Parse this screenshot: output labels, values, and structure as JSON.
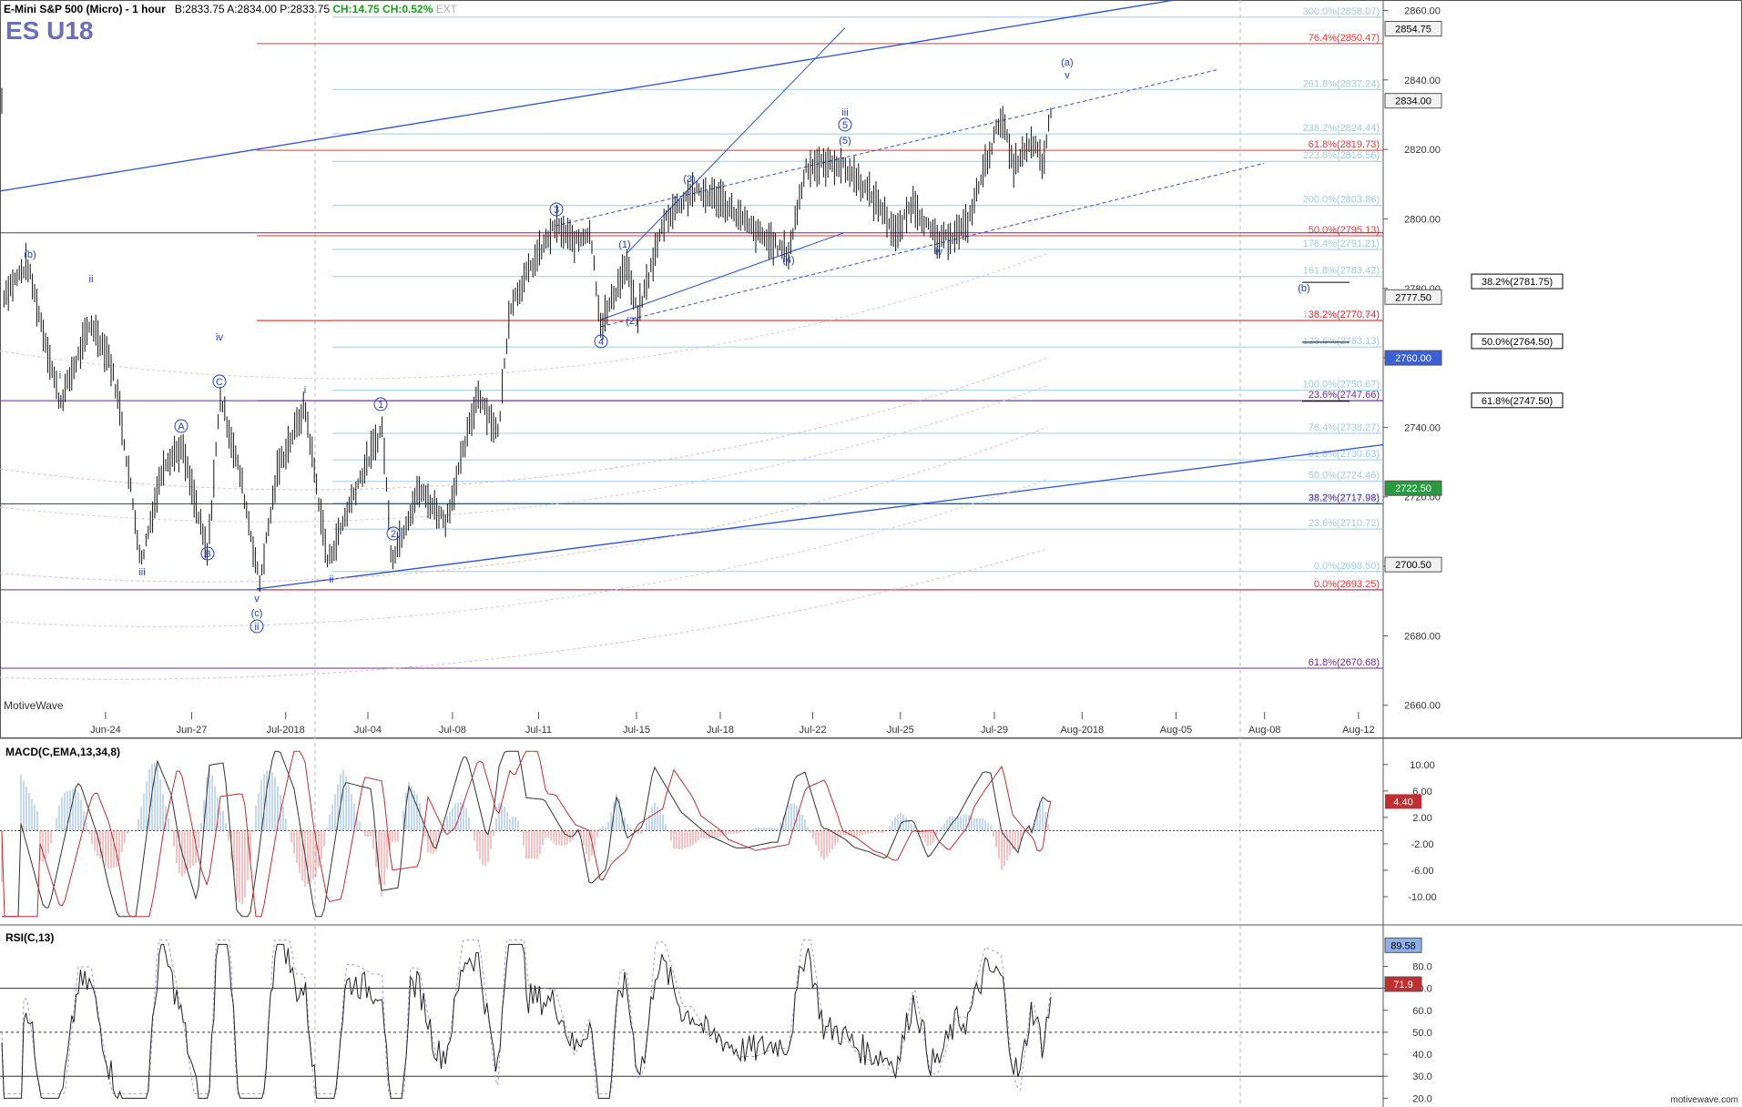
{
  "header": {
    "instrument": "E-Mini S&P 500 (Micro) - 1 hour",
    "bid": "B:2833.75",
    "ask": "A:2834.00",
    "last": "P:2833.75",
    "change": "CH:14.75",
    "change_pct": "CH:0.52%",
    "ext": "EXT",
    "symbol": "ES U18"
  },
  "brand": "MotiveWave",
  "footer": "motivewave.com",
  "colors": {
    "red": "#e53935",
    "purple": "#6a2c8c",
    "blue": "#2950d8",
    "lightblue": "#9ecbe8",
    "wave": "#2040c0"
  },
  "chart_data": [
    {
      "type": "line",
      "panel": "price",
      "title": "E-Mini S&P 500 (Micro) - 1 hour",
      "x_ticks": [
        "Jun-24",
        "Jun-27",
        "Jul-2018",
        "Jul-04",
        "Jul-08",
        "Jul-11",
        "Jul-15",
        "Jul-18",
        "Jul-22",
        "Jul-25",
        "Jul-29",
        "Aug-2018",
        "Aug-05",
        "Aug-08",
        "Aug-12"
      ],
      "y_ticks": [
        2660,
        2680,
        2700,
        2720,
        2740,
        2760,
        2780,
        2800,
        2820,
        2840,
        2860
      ],
      "ylim": [
        2656,
        2863
      ],
      "price_tags": [
        {
          "value": 2854.75,
          "label": "2854.75"
        },
        {
          "value": 2834.0,
          "label": "2834.00"
        },
        {
          "value": 2777.5,
          "label": "2777.50"
        },
        {
          "value": 2760.0,
          "label": "2760.00"
        },
        {
          "value": 2722.5,
          "label": "2722.50"
        },
        {
          "value": 2700.5,
          "label": "2700.50"
        }
      ],
      "fib_lines": [
        {
          "value": 2858.07,
          "label": "300.0%(2858.07)",
          "color": "lightblue"
        },
        {
          "value": 2850.47,
          "label": "76.4%(2850.47)",
          "color": "red"
        },
        {
          "value": 2837.24,
          "label": "261.8%(2837.24)",
          "color": "lightblue"
        },
        {
          "value": 2824.44,
          "label": "238.2%(2824.44)",
          "color": "lightblue"
        },
        {
          "value": 2819.73,
          "label": "61.8%(2819.73)",
          "color": "red"
        },
        {
          "value": 2816.56,
          "label": "223.6%(2816.56)",
          "color": "lightblue"
        },
        {
          "value": 2803.86,
          "label": "200.0%(2803.86)",
          "color": "lightblue"
        },
        {
          "value": 2795.13,
          "label": "50.0%(2795.13)",
          "color": "red"
        },
        {
          "value": 2791.21,
          "label": "176.4%(2791.21)",
          "color": "lightblue"
        },
        {
          "value": 2783.42,
          "label": "161.8%(2783.42)",
          "color": "lightblue"
        },
        {
          "value": 2770.87,
          "label": "138.2%(2770.87)",
          "color": "lightblue"
        },
        {
          "value": 2770.74,
          "label": "38.2%(2770.74)",
          "color": "red"
        },
        {
          "value": 2763.13,
          "label": "123.6%(2763.13)",
          "color": "lightblue"
        },
        {
          "value": 2750.67,
          "label": "100.0%(2750.67)",
          "color": "lightblue"
        },
        {
          "value": 2747.66,
          "label": "23.6%(2747.66)",
          "color": "purple"
        },
        {
          "value": 2738.27,
          "label": "76.4%(2738.27)",
          "color": "lightblue"
        },
        {
          "value": 2730.63,
          "label": "61.8%(2730.63)",
          "color": "lightblue"
        },
        {
          "value": 2724.46,
          "label": "50.0%(2724.46)",
          "color": "lightblue"
        },
        {
          "value": 2718.31,
          "label": "38.2%(2718.31)",
          "color": "lightblue"
        },
        {
          "value": 2717.98,
          "label": "38.2%(2717.98)",
          "color": "purple"
        },
        {
          "value": 2710.72,
          "label": "23.6%(2710.72)",
          "color": "lightblue"
        },
        {
          "value": 2698.5,
          "label": "0.0%(2698.50)",
          "color": "lightblue"
        },
        {
          "value": 2693.25,
          "label": "0.0%(2693.25)",
          "color": "red"
        },
        {
          "value": 2670.68,
          "label": "61.8%(2670.68)",
          "color": "purple"
        }
      ],
      "box_labels": [
        {
          "value": 2781.75,
          "label": "38.2%(2781.75)"
        },
        {
          "value": 2764.5,
          "label": "50.0%(2764.50)"
        },
        {
          "value": 2747.5,
          "label": "61.8%(2747.50)"
        }
      ],
      "wave_labels": [
        "(a)",
        "v",
        "iii",
        "5",
        "(5)",
        "(3)",
        "3",
        "(1)",
        "(4)",
        "iv",
        "(2)",
        "4",
        "(b)",
        "(b)",
        "i",
        "ii",
        "iii",
        "iv",
        "C",
        "A",
        "B",
        "i",
        "1",
        "2",
        "ii",
        "v",
        "(c)",
        "ii"
      ]
    },
    {
      "type": "line",
      "panel": "macd",
      "title": "MACD(C,EMA,13,34,8)",
      "y_ticks": [
        10.0,
        6.0,
        2.0,
        -2.0,
        -6.0,
        -10.0
      ],
      "y_tick_labels": [
        "10.00",
        "6.00",
        "2.00",
        "-2.00",
        "-6.00",
        "-10.00"
      ],
      "ylim": [
        -14,
        13
      ],
      "last_value_tag": "4.40"
    },
    {
      "type": "line",
      "panel": "rsi",
      "title": "RSI(C,13)",
      "y_ticks": [
        20,
        30,
        40,
        50,
        60,
        70,
        80
      ],
      "y_tick_labels": [
        "20.0",
        "30.0",
        "40.0",
        "50.0",
        "60.0",
        "70.0",
        "80.0"
      ],
      "ylim": [
        16,
        98
      ],
      "tags": [
        {
          "value": 89.58,
          "label": "89.58"
        },
        {
          "value": 71.9,
          "label": "71.9"
        }
      ]
    }
  ]
}
